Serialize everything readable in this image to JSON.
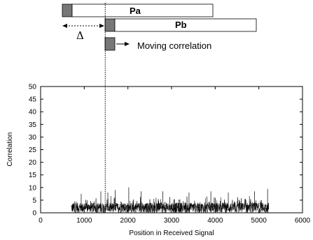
{
  "diagram": {
    "packet_a_label": "Pa",
    "packet_b_label": "Pb",
    "offset_label": "Δ",
    "moving_label": "Moving correlation"
  },
  "chart_data": {
    "type": "line",
    "xlabel": "Position in Received Signal",
    "ylabel": "Correlation",
    "xlim": [
      0,
      6000
    ],
    "ylim": [
      0,
      50
    ],
    "xticks": [
      0,
      1000,
      2000,
      3000,
      4000,
      5000,
      6000
    ],
    "yticks": [
      0,
      5,
      10,
      15,
      20,
      25,
      30,
      35,
      40,
      45,
      50
    ],
    "grid": false,
    "series": [
      {
        "signal_range": [
          700,
          5230
        ],
        "baseline_range": [
          0,
          4
        ],
        "typical_peak": 7,
        "max_spikes": [
          {
            "x": 930,
            "y": 7.5
          },
          {
            "x": 1380,
            "y": 8.5
          },
          {
            "x": 1540,
            "y": 8
          },
          {
            "x": 1710,
            "y": 9
          },
          {
            "x": 2020,
            "y": 10
          },
          {
            "x": 2300,
            "y": 8.5
          },
          {
            "x": 2800,
            "y": 8.5
          },
          {
            "x": 3400,
            "y": 8
          },
          {
            "x": 3900,
            "y": 8.5
          },
          {
            "x": 4300,
            "y": 8
          },
          {
            "x": 4900,
            "y": 8.5
          },
          {
            "x": 5200,
            "y": 9.5
          }
        ]
      }
    ],
    "vertical_marker_x": 1480,
    "line_color": "#000000"
  }
}
